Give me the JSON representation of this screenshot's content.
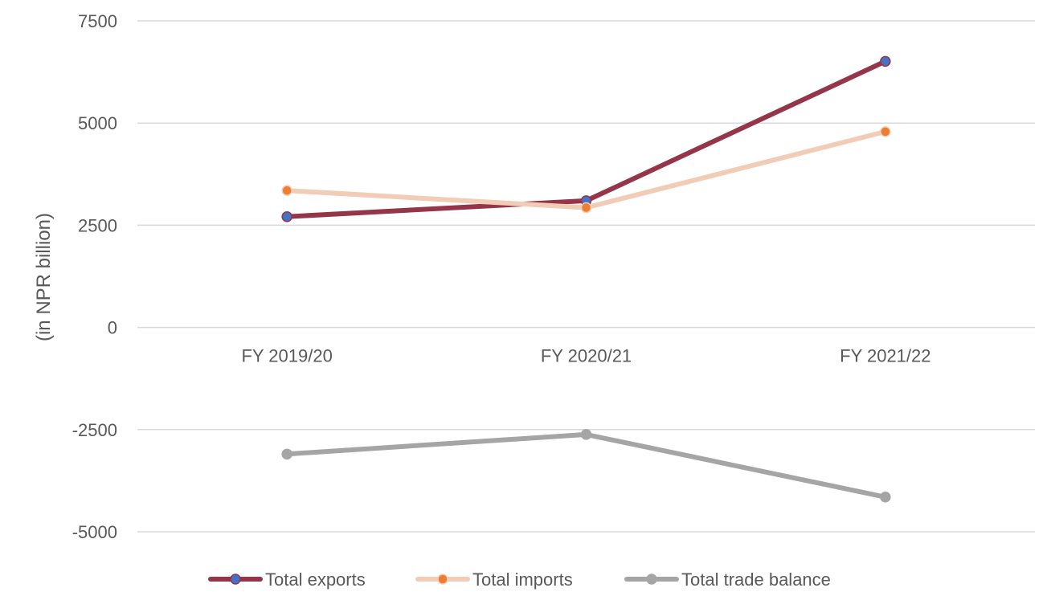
{
  "chart_data": {
    "type": "line",
    "title": "",
    "xlabel": "",
    "ylabel": "(in NPR billion)",
    "categories": [
      "FY 2019/20",
      "FY 2020/21",
      "FY 2021/22"
    ],
    "ylim": [
      -5000,
      7500
    ],
    "yticks": [
      7500,
      5000,
      2500,
      0,
      -2500,
      -5000
    ],
    "grid": true,
    "legend_position": "bottom",
    "series": [
      {
        "name": "Total exports",
        "values": [
          2710,
          3100,
          6510
        ],
        "line_color": "#943549",
        "marker_color": "#4472C4"
      },
      {
        "name": "Total imports",
        "values": [
          3350,
          2930,
          4790
        ],
        "line_color": "#F1CDB8",
        "marker_color": "#ED7D31"
      },
      {
        "name": "Total trade balance",
        "values": [
          -3100,
          -2620,
          -4150
        ],
        "line_color": "#A5A5A5",
        "marker_color": "#A5A5A5"
      }
    ]
  }
}
